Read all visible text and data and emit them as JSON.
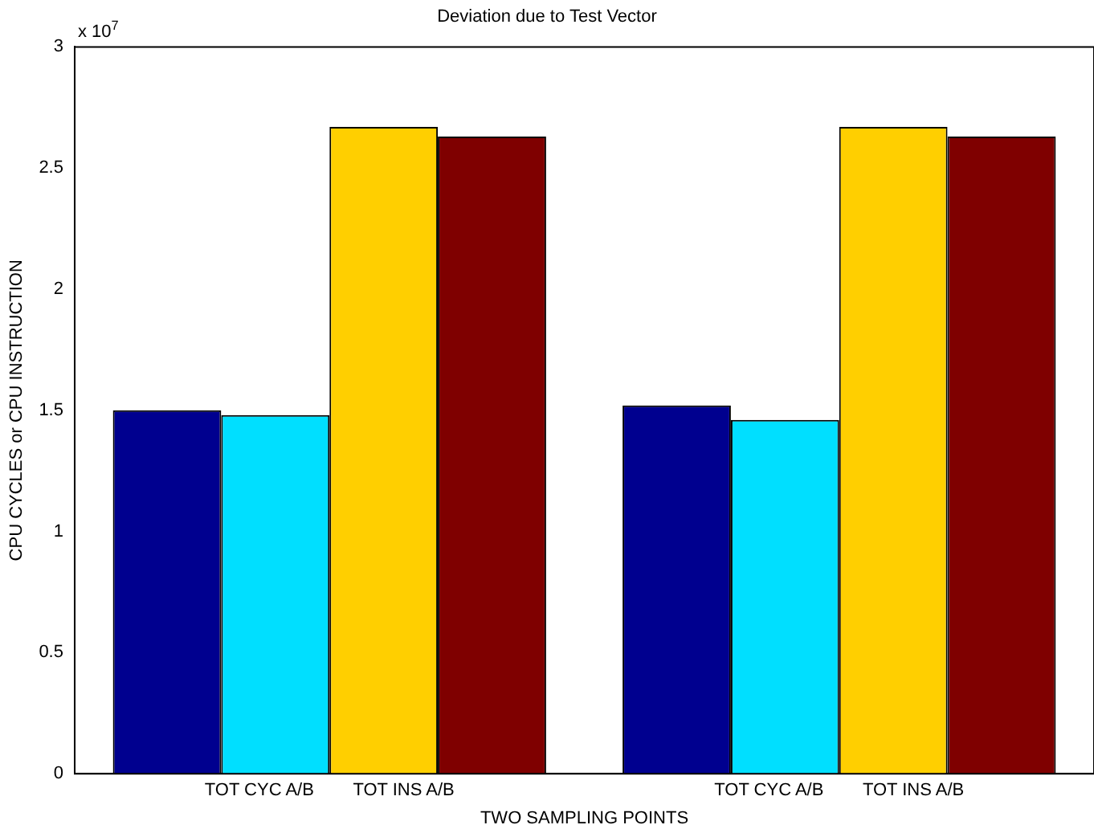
{
  "chart_data": {
    "type": "bar",
    "title": "Deviation due to Test Vector",
    "xlabel": "TWO SAMPLING POINTS",
    "ylabel": "CPU CYCLES or CPU INSTRUCTION",
    "categories": [
      "TOT CYC A/B        TOT INS A/B",
      "TOT CYC A/B        TOT INS A/B"
    ],
    "series": [
      {
        "color": "#00008f",
        "values": [
          1.5,
          1.52
        ]
      },
      {
        "color": "#00dfff",
        "values": [
          1.48,
          1.46
        ]
      },
      {
        "color": "#ffcf00",
        "values": [
          2.67,
          2.67
        ]
      },
      {
        "color": "#7f0000",
        "values": [
          2.63,
          2.63
        ]
      }
    ],
    "ylim": [
      0,
      3
    ],
    "yticks": [
      0,
      0.5,
      1,
      1.5,
      2,
      2.5,
      3
    ],
    "annotations": [
      "x 10$^{7}$"
    ],
    "grid": false,
    "legend": false
  }
}
